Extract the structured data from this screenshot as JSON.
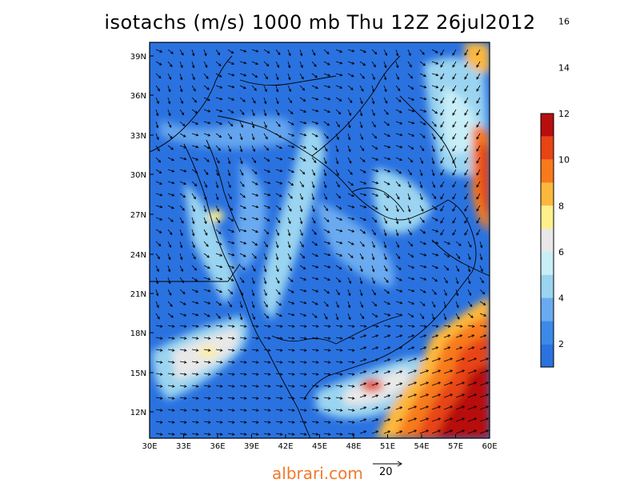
{
  "title": "isotachs (m/s) 1000 mb Thu 12Z 26jul2012",
  "lon_ticks": [
    "30E",
    "33E",
    "36E",
    "39E",
    "42E",
    "45E",
    "48E",
    "51E",
    "54E",
    "57E",
    "60E"
  ],
  "lat_ticks": [
    "39N",
    "36N",
    "33N",
    "30N",
    "27N",
    "24N",
    "21N",
    "18N",
    "15N",
    "12N"
  ],
  "colorbar": {
    "colors": [
      "#2a72e0",
      "#3c8ae8",
      "#6aaaf0",
      "#9ad4f0",
      "#c8eef8",
      "#e8e8e8",
      "#fff08c",
      "#fcb83c",
      "#f87a1c",
      "#e84414",
      "#b80e0e"
    ],
    "labels": [
      "2",
      "4",
      "6",
      "8",
      "10",
      "12",
      "14",
      "16"
    ]
  },
  "legend_vector": {
    "label": "20"
  },
  "watermark": "albrari.com",
  "colors": {
    "background_wind": "#2a72e0",
    "strong_wind": "#d81e0e"
  }
}
